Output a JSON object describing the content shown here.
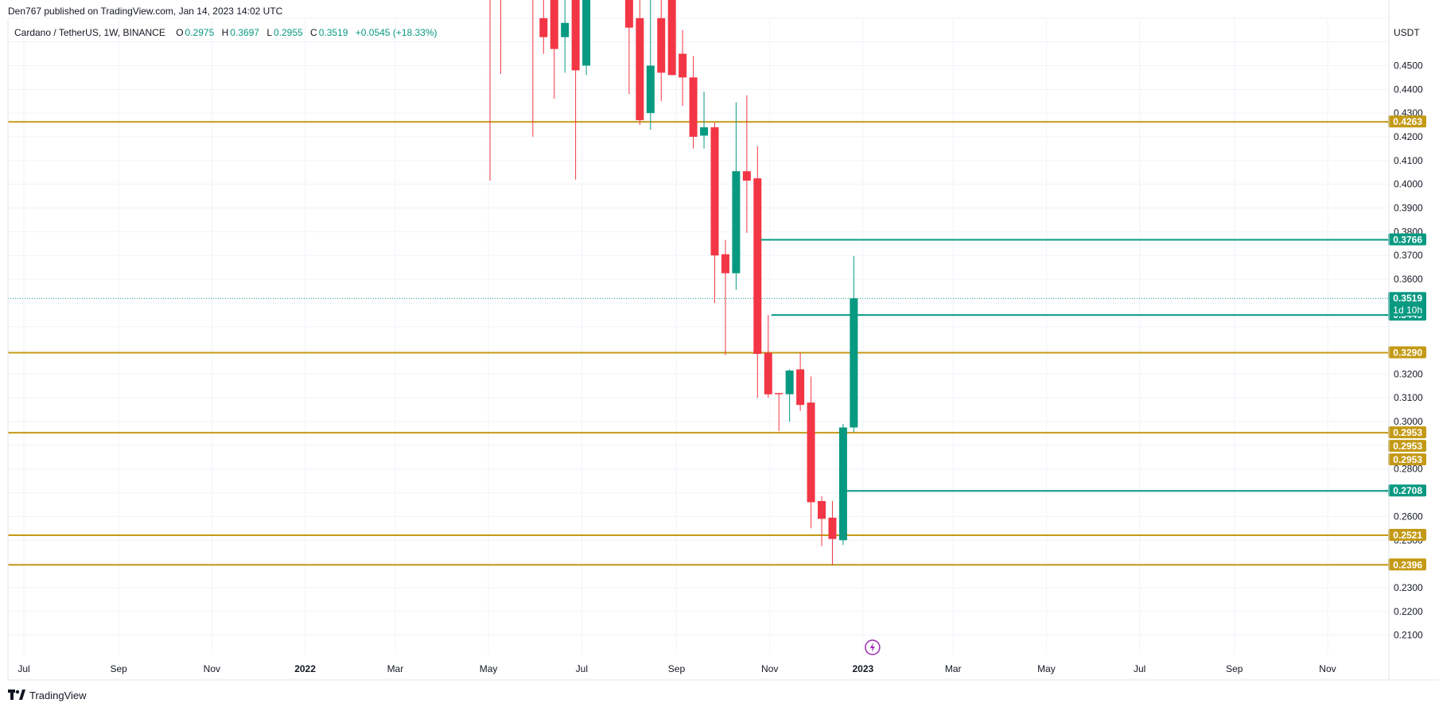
{
  "header": {
    "published": "Den767 published on TradingView.com, Jan 14, 2023 14:02 UTC",
    "symbol": "Cardano / TetherUS, 1W, BINANCE",
    "ohlc": [
      {
        "k": "O",
        "v": "0.2975"
      },
      {
        "k": "H",
        "v": "0.3697"
      },
      {
        "k": "L",
        "v": "0.2955"
      },
      {
        "k": "C",
        "v": "0.3519"
      },
      {
        "k": "",
        "v": "+0.0545 (+18.33%)"
      }
    ],
    "currency": "USDT"
  },
  "footer": {
    "brand": "TradingView",
    "logo_icon": "tradingview-logo-icon"
  },
  "colors": {
    "up": "#089981",
    "down": "#f23645",
    "level": "#c49a15",
    "grid": "#f0f3fa",
    "axis_text": "#131722"
  },
  "chart_data": {
    "type": "candlestick",
    "title": "Cardano / TetherUS, 1W, BINANCE",
    "xlabel": "",
    "ylabel": "USDT",
    "grid": true,
    "ylim": [
      0.2035,
      0.4696
    ],
    "x_tick_labels": [
      "Jul",
      "Sep",
      "Nov",
      "2022",
      "Mar",
      "May",
      "Jul",
      "Sep",
      "Nov",
      "2023",
      "Mar",
      "May",
      "Jul",
      "Sep",
      "Nov"
    ],
    "x_tick_bold": [
      "2022",
      "2023"
    ],
    "y_ticks": [
      "0.4500",
      "0.4400",
      "0.4300",
      "0.4200",
      "0.4100",
      "0.4000",
      "0.3900",
      "0.3800",
      "0.3700",
      "0.3600",
      "0.3200",
      "0.3100",
      "0.3000",
      "0.2800",
      "0.2600",
      "0.2500",
      "0.2300",
      "0.2200",
      "0.2100"
    ],
    "candles": [
      {
        "date": "2022-05-02",
        "o": 0.64,
        "h": 0.69,
        "l": 0.4015,
        "c": 0.59
      },
      {
        "date": "2022-05-09",
        "o": 0.59,
        "h": 0.64,
        "l": 0.4465,
        "c": 0.5
      },
      {
        "date": "2022-05-30",
        "o": 0.52,
        "h": 0.58,
        "l": 0.42,
        "c": 0.48
      },
      {
        "date": "2022-06-06",
        "o": 0.47,
        "h": 0.52,
        "l": 0.455,
        "c": 0.462
      },
      {
        "date": "2022-06-13",
        "o": 0.51,
        "h": 0.53,
        "l": 0.436,
        "c": 0.457
      },
      {
        "date": "2022-06-20",
        "o": 0.462,
        "h": 0.5,
        "l": 0.447,
        "c": 0.468
      },
      {
        "date": "2022-06-27",
        "o": 0.48,
        "h": 0.5,
        "l": 0.402,
        "c": 0.448
      },
      {
        "date": "2022-07-04",
        "o": 0.45,
        "h": 0.52,
        "l": 0.446,
        "c": 0.482
      },
      {
        "date": "2022-08-01",
        "o": 0.5,
        "h": 0.54,
        "l": 0.438,
        "c": 0.466
      },
      {
        "date": "2022-08-08",
        "o": 0.47,
        "h": 0.5,
        "l": 0.425,
        "c": 0.427
      },
      {
        "date": "2022-08-15",
        "o": 0.43,
        "h": 0.49,
        "l": 0.423,
        "c": 0.45
      },
      {
        "date": "2022-08-22",
        "o": 0.47,
        "h": 0.49,
        "l": 0.435,
        "c": 0.447
      },
      {
        "date": "2022-08-29",
        "o": 0.48,
        "h": 0.5,
        "l": 0.446,
        "c": 0.446
      },
      {
        "date": "2022-09-05",
        "o": 0.455,
        "h": 0.465,
        "l": 0.433,
        "c": 0.445
      },
      {
        "date": "2022-09-12",
        "o": 0.445,
        "h": 0.454,
        "l": 0.415,
        "c": 0.42
      },
      {
        "date": "2022-09-19",
        "o": 0.4205,
        "h": 0.439,
        "l": 0.415,
        "c": 0.424
      },
      {
        "date": "2022-09-26",
        "o": 0.424,
        "h": 0.426,
        "l": 0.35,
        "c": 0.37
      },
      {
        "date": "2022-10-03",
        "o": 0.3705,
        "h": 0.3765,
        "l": 0.328,
        "c": 0.3625
      },
      {
        "date": "2022-10-10",
        "o": 0.3625,
        "h": 0.4345,
        "l": 0.3555,
        "c": 0.4055
      },
      {
        "date": "2022-10-17",
        "o": 0.4055,
        "h": 0.4375,
        "l": 0.3795,
        "c": 0.4015
      },
      {
        "date": "2022-10-24",
        "o": 0.4025,
        "h": 0.416,
        "l": 0.31,
        "c": 0.3285
      },
      {
        "date": "2022-10-31",
        "o": 0.329,
        "h": 0.3449,
        "l": 0.31,
        "c": 0.3115
      },
      {
        "date": "2022-11-07",
        "o": 0.312,
        "h": 0.312,
        "l": 0.296,
        "c": 0.3115
      },
      {
        "date": "2022-11-14",
        "o": 0.3115,
        "h": 0.322,
        "l": 0.3,
        "c": 0.3215
      },
      {
        "date": "2022-11-21",
        "o": 0.322,
        "h": 0.329,
        "l": 0.3045,
        "c": 0.307
      },
      {
        "date": "2022-11-28",
        "o": 0.308,
        "h": 0.319,
        "l": 0.255,
        "c": 0.266
      },
      {
        "date": "2022-12-05",
        "o": 0.2665,
        "h": 0.2685,
        "l": 0.2475,
        "c": 0.259
      },
      {
        "date": "2022-12-12",
        "o": 0.2595,
        "h": 0.2665,
        "l": 0.2395,
        "c": 0.2505
      },
      {
        "date": "2022-12-19",
        "o": 0.25,
        "h": 0.299,
        "l": 0.248,
        "c": 0.2975
      },
      {
        "date": "2022-12-26",
        "o": 0.2975,
        "h": 0.3697,
        "l": 0.2955,
        "c": 0.3519
      }
    ],
    "horizontal_levels": [
      {
        "label": "0.4263",
        "value": 0.4263,
        "color": "#c49a15"
      },
      {
        "label": "0.3290",
        "value": 0.329,
        "color": "#c49a15"
      },
      {
        "label": "0.2953",
        "value": 0.2953,
        "color": "#c49a15"
      },
      {
        "label": "0.2521",
        "value": 0.2521,
        "color": "#c49a15"
      },
      {
        "label": "0.2396",
        "value": 0.2396,
        "color": "#c49a15"
      }
    ],
    "ray_levels": [
      {
        "label": "0.3766",
        "value": 0.3766,
        "from": "2022-10-24"
      },
      {
        "label": "0.3449",
        "value": 0.3449,
        "from": "2022-10-31"
      },
      {
        "label": "0.2708",
        "value": 0.2708,
        "from": "2022-12-19"
      }
    ],
    "price_labels": [
      {
        "label": "0.3519",
        "value": 0.3519,
        "sub": "1d 10h",
        "color": "#089981"
      },
      {
        "label": "0.2953",
        "value": 0.2953,
        "offset": 1,
        "color": "#c49a15"
      },
      {
        "label": "0.2953",
        "value": 0.2953,
        "offset": 2,
        "color": "#c49a15"
      }
    ],
    "current_price": 0.3519
  }
}
